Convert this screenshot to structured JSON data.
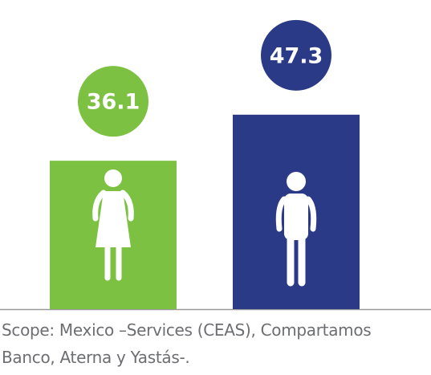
{
  "chart_data": {
    "type": "bar",
    "categories": [
      null,
      null
    ],
    "values": [
      36.1,
      47.3
    ],
    "colors": [
      "#7dc142",
      "#2b3a87"
    ],
    "footnote": [
      "Scope: Mexico –Services (CEAS), Compartamos",
      "Banco, Aterna y Yastás-."
    ]
  }
}
